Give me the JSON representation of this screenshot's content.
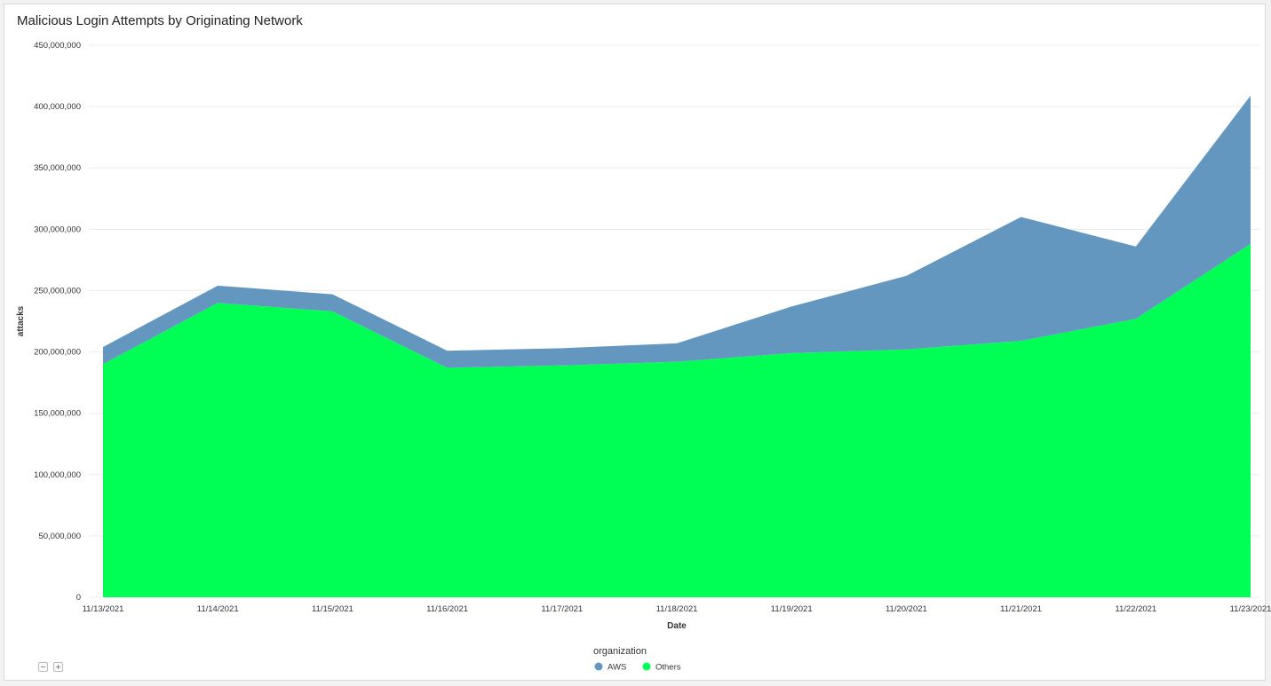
{
  "chart_data": {
    "type": "area",
    "stacked": true,
    "title": "Malicious Login Attempts by Originating Network",
    "xlabel": "Date",
    "ylabel": "attacks",
    "x": [
      "11/13/2021",
      "11/14/2021",
      "11/15/2021",
      "11/16/2021",
      "11/17/2021",
      "11/18/2021",
      "11/19/2021",
      "11/20/2021",
      "11/21/2021",
      "11/22/2021",
      "11/23/2021"
    ],
    "ylim": [
      0,
      450000000
    ],
    "y_ticks": [
      "0",
      "50,000,000",
      "100,000,000",
      "150,000,000",
      "200,000,000",
      "250,000,000",
      "300,000,000",
      "350,000,000",
      "400,000,000",
      "450,000,000"
    ],
    "grid": true,
    "legend_title": "organization",
    "legend_position": "bottom",
    "series": [
      {
        "name": "Others",
        "color": "#00ff55",
        "values": [
          190000000,
          240000000,
          233000000,
          187000000,
          189000000,
          192000000,
          199000000,
          202000000,
          209000000,
          227000000,
          288000000
        ]
      },
      {
        "name": "AWS",
        "color": "#6497bf",
        "values": [
          14000000,
          14000000,
          14000000,
          14000000,
          14000000,
          15000000,
          38000000,
          60000000,
          101000000,
          59000000,
          121000000
        ]
      }
    ],
    "legend_order": [
      "AWS",
      "Others"
    ]
  },
  "controls": {
    "zoom_out": "−",
    "zoom_in": "+"
  }
}
